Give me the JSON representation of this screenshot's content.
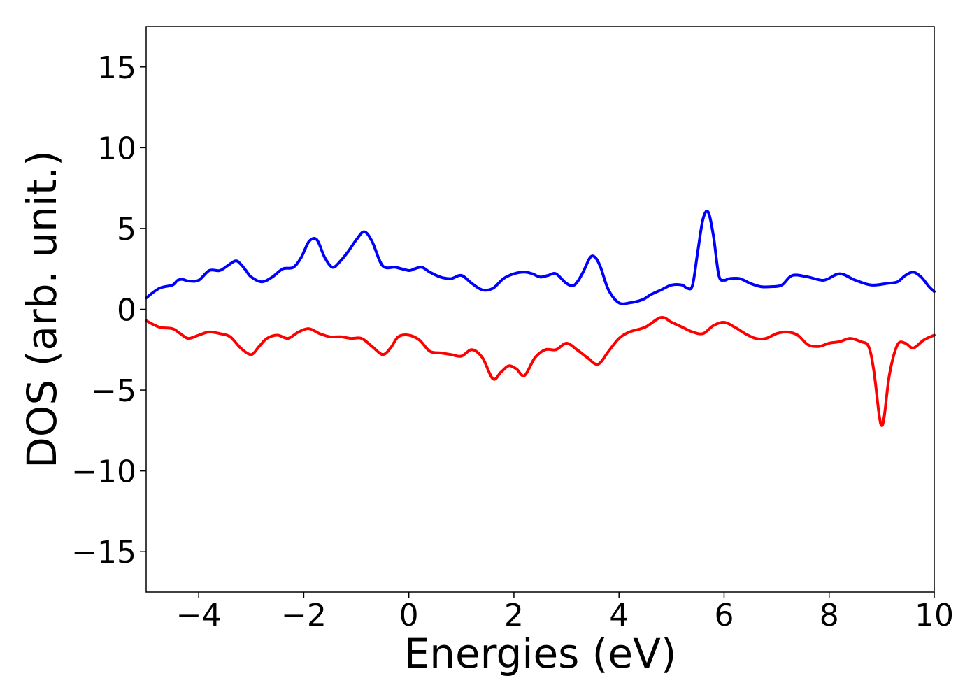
{
  "chart_data": {
    "type": "line",
    "title": "",
    "xlabel": "Energies (eV)",
    "ylabel": "DOS (arb. unit.)",
    "xlim": [
      -5,
      10
    ],
    "ylim": [
      -17.5,
      17.5
    ],
    "xticks": [
      -4,
      -2,
      0,
      2,
      4,
      6,
      8,
      10
    ],
    "xtick_labels": [
      "−4",
      "−2",
      "0",
      "2",
      "4",
      "6",
      "8",
      "10"
    ],
    "yticks": [
      15,
      10,
      5,
      0,
      -5,
      -10,
      -15
    ],
    "ytick_labels": [
      "15",
      "10",
      "5",
      "0",
      "−5",
      "−10",
      "−15"
    ],
    "grid": false,
    "legend": "none",
    "series": [
      {
        "color": "#0000ff",
        "x": [
          -5.0,
          -4.75,
          -4.5,
          -4.4,
          -4.3,
          -4.2,
          -4.0,
          -3.8,
          -3.6,
          -3.45,
          -3.3,
          -3.2,
          -3.1,
          -3.0,
          -2.8,
          -2.6,
          -2.4,
          -2.2,
          -2.05,
          -1.9,
          -1.75,
          -1.6,
          -1.45,
          -1.3,
          -1.15,
          -1.0,
          -0.85,
          -0.7,
          -0.5,
          -0.25,
          0.0,
          0.1,
          0.25,
          0.4,
          0.6,
          0.8,
          1.0,
          1.2,
          1.4,
          1.6,
          1.8,
          2.0,
          2.2,
          2.35,
          2.5,
          2.65,
          2.8,
          3.0,
          3.15,
          3.3,
          3.45,
          3.55,
          3.65,
          3.8,
          4.0,
          4.2,
          4.45,
          4.6,
          4.8,
          5.0,
          5.2,
          5.3,
          5.4,
          5.5,
          5.6,
          5.7,
          5.8,
          5.9,
          6.0,
          6.1,
          6.3,
          6.5,
          6.7,
          6.9,
          7.1,
          7.3,
          7.6,
          7.9,
          8.2,
          8.5,
          8.8,
          9.1,
          9.3,
          9.45,
          9.6,
          9.75,
          9.9,
          10.0
        ],
        "values": [
          0.7,
          1.3,
          1.5,
          1.8,
          1.85,
          1.75,
          1.8,
          2.4,
          2.4,
          2.7,
          3.0,
          2.8,
          2.4,
          2.0,
          1.7,
          2.0,
          2.5,
          2.6,
          3.2,
          4.2,
          4.3,
          3.2,
          2.6,
          3.0,
          3.6,
          4.3,
          4.8,
          4.2,
          2.7,
          2.6,
          2.4,
          2.5,
          2.6,
          2.3,
          2.0,
          1.9,
          2.1,
          1.6,
          1.2,
          1.3,
          1.9,
          2.2,
          2.3,
          2.2,
          2.0,
          2.1,
          2.2,
          1.6,
          1.5,
          2.2,
          3.2,
          3.2,
          2.6,
          1.2,
          0.4,
          0.4,
          0.6,
          0.9,
          1.2,
          1.5,
          1.5,
          1.3,
          1.5,
          3.6,
          5.6,
          6.0,
          4.5,
          2.1,
          1.8,
          1.9,
          1.9,
          1.6,
          1.4,
          1.4,
          1.5,
          2.1,
          2.0,
          1.8,
          2.2,
          1.8,
          1.5,
          1.6,
          1.7,
          2.1,
          2.3,
          2.0,
          1.4,
          1.1
        ]
      },
      {
        "color": "#ff0000",
        "x": [
          -5.0,
          -4.75,
          -4.5,
          -4.35,
          -4.2,
          -4.0,
          -3.8,
          -3.6,
          -3.4,
          -3.2,
          -3.0,
          -2.85,
          -2.7,
          -2.5,
          -2.3,
          -2.1,
          -1.9,
          -1.7,
          -1.5,
          -1.3,
          -1.1,
          -0.9,
          -0.7,
          -0.5,
          -0.35,
          -0.2,
          0.0,
          0.2,
          0.4,
          0.6,
          0.8,
          1.0,
          1.2,
          1.4,
          1.6,
          1.75,
          1.9,
          2.05,
          2.2,
          2.4,
          2.6,
          2.8,
          3.0,
          3.2,
          3.4,
          3.6,
          3.8,
          4.0,
          4.2,
          4.5,
          4.8,
          5.0,
          5.2,
          5.4,
          5.6,
          5.8,
          6.0,
          6.2,
          6.4,
          6.6,
          6.8,
          7.0,
          7.2,
          7.4,
          7.6,
          7.8,
          8.0,
          8.2,
          8.4,
          8.6,
          8.75,
          8.85,
          8.95,
          9.0,
          9.05,
          9.15,
          9.3,
          9.45,
          9.6,
          9.8,
          10.0
        ],
        "values": [
          -0.7,
          -1.1,
          -1.2,
          -1.5,
          -1.8,
          -1.6,
          -1.4,
          -1.5,
          -1.7,
          -2.4,
          -2.8,
          -2.3,
          -1.8,
          -1.6,
          -1.8,
          -1.4,
          -1.2,
          -1.5,
          -1.7,
          -1.7,
          -1.8,
          -1.8,
          -2.3,
          -2.8,
          -2.4,
          -1.7,
          -1.6,
          -1.9,
          -2.6,
          -2.7,
          -2.8,
          -2.9,
          -2.5,
          -3.0,
          -4.3,
          -3.9,
          -3.5,
          -3.7,
          -4.1,
          -3.0,
          -2.5,
          -2.5,
          -2.1,
          -2.5,
          -3.0,
          -3.4,
          -2.6,
          -1.8,
          -1.4,
          -1.1,
          -0.5,
          -0.8,
          -1.1,
          -1.4,
          -1.5,
          -1.0,
          -0.8,
          -1.1,
          -1.5,
          -1.8,
          -1.8,
          -1.5,
          -1.4,
          -1.6,
          -2.2,
          -2.3,
          -2.1,
          -2.0,
          -1.8,
          -2.0,
          -2.3,
          -3.8,
          -6.5,
          -7.2,
          -6.6,
          -4.0,
          -2.2,
          -2.1,
          -2.4,
          -1.9,
          -1.6
        ]
      }
    ]
  }
}
